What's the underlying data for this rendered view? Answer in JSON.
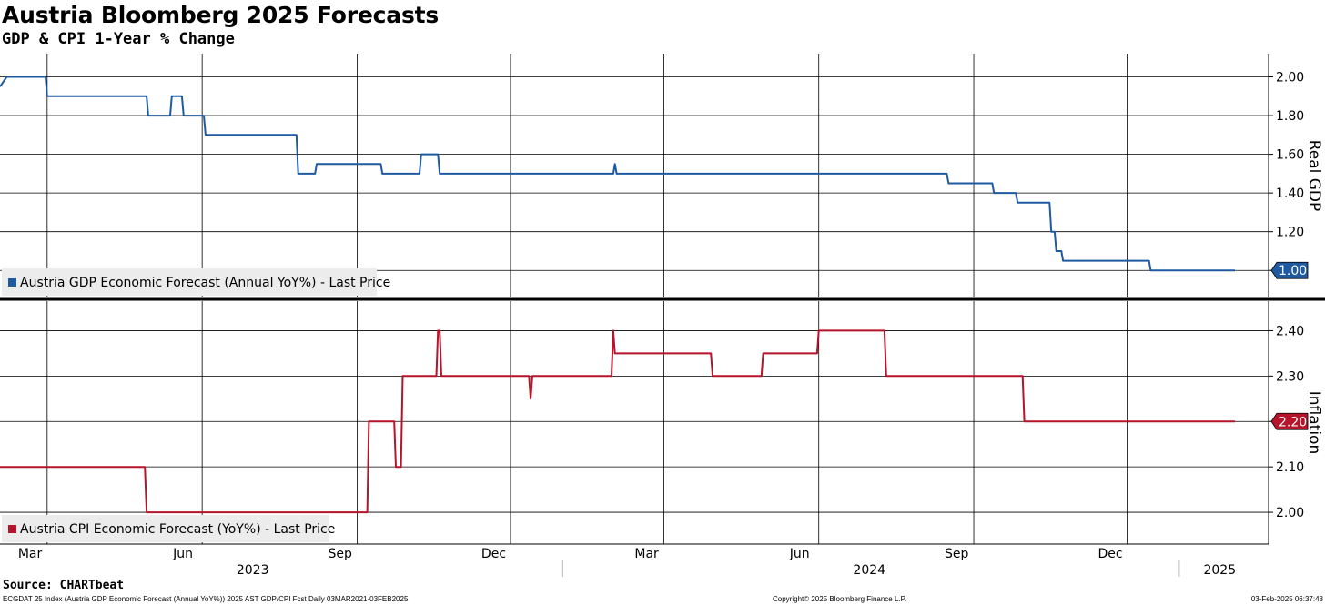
{
  "header": {
    "title": "Austria Bloomberg 2025 Forecasts",
    "subtitle": "GDP & CPI 1-Year % Change"
  },
  "footer": {
    "source": "Source: CHARTbeat",
    "description": "ECGDAT 25 Index (Austria GDP Economic Forecast (Annual YoY%)) 2025 AST GDP/CPI Fcst  Daily 03MAR2021-03FEB2025",
    "copyright": "Copyright© 2025 Bloomberg Finance L.P.",
    "timestamp": "03-Feb-2025 06:37:48"
  },
  "chart_data": [
    {
      "type": "line",
      "panel": "top",
      "ylabel": "Real GDP",
      "ylim": [
        0.86,
        2.12
      ],
      "yticks": [
        "2.00",
        "1.80",
        "1.60",
        "1.40",
        "1.20",
        "1.00"
      ],
      "ytick_values": [
        2.0,
        1.8,
        1.6,
        1.4,
        1.2,
        1.0
      ],
      "grid": true,
      "legend_position": "bottom-left",
      "last_value_label": "1.00",
      "series": [
        {
          "name": "Austria GDP Economic Forecast (Annual YoY%) - Last Price",
          "color": "#1f5aa0",
          "x": [
            "2023-02-01",
            "2023-02-05",
            "2023-02-28",
            "2023-03-01",
            "2023-04-29",
            "2023-04-30",
            "2023-05-13",
            "2023-05-14",
            "2023-05-20",
            "2023-05-21",
            "2023-06-02",
            "2023-06-03",
            "2023-07-27",
            "2023-07-28",
            "2023-08-07",
            "2023-08-08",
            "2023-09-15",
            "2023-09-16",
            "2023-10-08",
            "2023-10-09",
            "2023-10-19",
            "2023-10-20",
            "2023-11-01",
            "2023-11-02",
            "2024-01-31",
            "2024-02-01",
            "2024-02-02",
            "2024-08-16",
            "2024-08-17",
            "2024-09-12",
            "2024-09-13",
            "2024-09-26",
            "2024-09-27",
            "2024-10-16",
            "2024-10-17",
            "2024-10-19",
            "2024-10-20",
            "2024-10-23",
            "2024-10-24",
            "2024-12-14",
            "2024-12-15",
            "2025-02-03"
          ],
          "y": [
            1.95,
            2.0,
            2.0,
            1.9,
            1.9,
            1.8,
            1.8,
            1.9,
            1.9,
            1.8,
            1.8,
            1.7,
            1.7,
            1.5,
            1.5,
            1.55,
            1.55,
            1.5,
            1.5,
            1.6,
            1.6,
            1.5,
            1.5,
            1.5,
            1.5,
            1.55,
            1.5,
            1.5,
            1.45,
            1.45,
            1.4,
            1.4,
            1.35,
            1.35,
            1.2,
            1.2,
            1.1,
            1.1,
            1.05,
            1.05,
            1.0,
            1.0
          ]
        }
      ]
    },
    {
      "type": "line",
      "panel": "bottom",
      "ylabel": "Inflation",
      "ylim": [
        1.93,
        2.465
      ],
      "yticks": [
        "2.40",
        "2.30",
        "2.20",
        "2.10",
        "2.00"
      ],
      "ytick_values": [
        2.4,
        2.3,
        2.2,
        2.1,
        2.0
      ],
      "grid": true,
      "legend_position": "bottom-left",
      "last_value_label": "2.20",
      "series": [
        {
          "name": "Austria CPI Economic Forecast (YoY%) - Last Price",
          "color": "#b5142b",
          "x": [
            "2023-02-01",
            "2023-04-28",
            "2023-04-29",
            "2023-09-07",
            "2023-09-08",
            "2023-09-23",
            "2023-09-24",
            "2023-09-27",
            "2023-09-28",
            "2023-10-05",
            "2023-10-06",
            "2023-10-18",
            "2023-10-19",
            "2023-10-20",
            "2023-10-21",
            "2023-12-12",
            "2023-12-13",
            "2023-12-14",
            "2024-01-30",
            "2024-01-31",
            "2024-02-01",
            "2024-03-29",
            "2024-03-30",
            "2024-04-28",
            "2024-04-29",
            "2024-05-31",
            "2024-06-01",
            "2024-07-10",
            "2024-07-11",
            "2024-09-30",
            "2024-10-01",
            "2025-02-03"
          ],
          "y": [
            2.1,
            2.1,
            2.0,
            2.0,
            2.2,
            2.2,
            2.1,
            2.1,
            2.3,
            2.3,
            2.3,
            2.3,
            2.4,
            2.4,
            2.3,
            2.3,
            2.25,
            2.3,
            2.3,
            2.4,
            2.35,
            2.35,
            2.3,
            2.3,
            2.35,
            2.35,
            2.4,
            2.4,
            2.3,
            2.3,
            2.2,
            2.2
          ]
        }
      ]
    }
  ],
  "x_axis": {
    "range": [
      "2023-02-01",
      "2025-02-23"
    ],
    "month_ticks": [
      "2023-03-01",
      "2023-06-01",
      "2023-09-01",
      "2023-12-01",
      "2024-03-01",
      "2024-06-01",
      "2024-09-01",
      "2024-12-01"
    ],
    "month_labels": [
      "Mar",
      "Jun",
      "Sep",
      "Dec",
      "Mar",
      "Jun",
      "Sep",
      "Dec"
    ],
    "year_labels": [
      "2023",
      "2024",
      "2025"
    ],
    "year_centers": [
      "2023-07-01",
      "2024-07-01",
      "2025-01-25"
    ],
    "year_separators": [
      "2024-01-01",
      "2025-01-01"
    ]
  }
}
